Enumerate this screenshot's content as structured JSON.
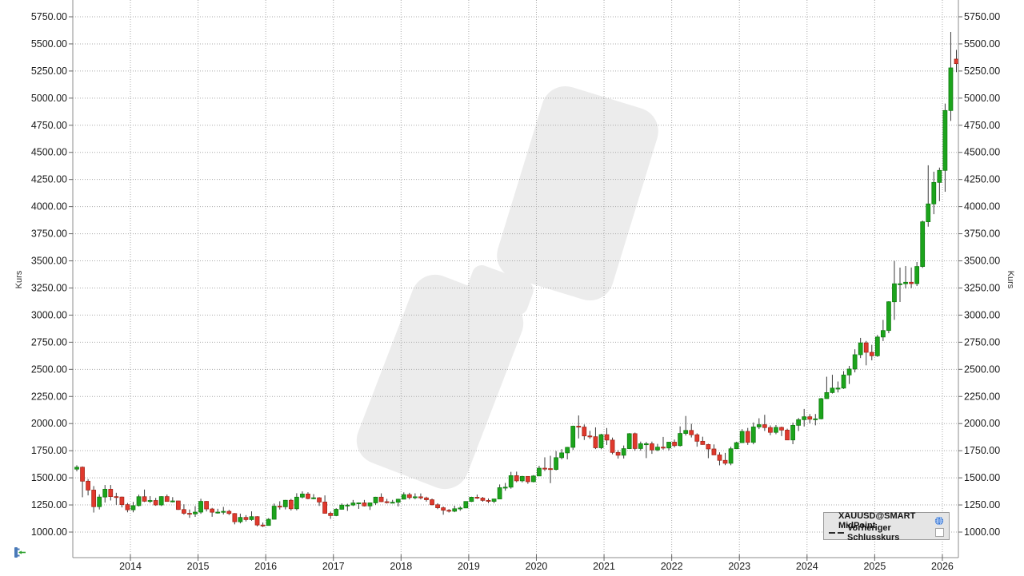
{
  "axes": {
    "left_title": "Kurs",
    "right_title": "Kurs",
    "y_tick_labels": [
      "5750.00",
      "5500.00",
      "5250.00",
      "5000.00",
      "4750.00",
      "4500.00",
      "4250.00",
      "4000.00",
      "3750.00",
      "3500.00",
      "3250.00",
      "3000.00",
      "2750.00",
      "2500.00",
      "2250.00",
      "2000.00",
      "1750.00",
      "1500.00",
      "1250.00",
      "1000.00"
    ],
    "x_tick_labels": [
      "2014",
      "2015",
      "2016",
      "2017",
      "2018",
      "2019",
      "2020",
      "2021",
      "2022",
      "2023",
      "2024",
      "2025",
      "2026"
    ]
  },
  "legend": {
    "series1": "XAUUSD@SMART MidPoint",
    "series2": "Vorheriger Schlusskurs",
    "checkbox_state": "unchecked"
  },
  "colors": {
    "up": "#1ca41c",
    "up_border": "#0e7a0e",
    "down": "#e0392d",
    "down_border": "#a32519",
    "wick": "#3a3a3a",
    "grid": "#a9a9a9",
    "border": "#8c8c8c",
    "tick": "#666666",
    "text": "#1a1a1a",
    "watermark": "#ececec",
    "legend_bg": "#e5e5e5"
  },
  "chart_data": {
    "type": "candlestick",
    "symbol": "XAUUSD@SMART MidPoint",
    "candle_interval": "monthly",
    "ylabel": "Kurs",
    "ylim": [
      875,
      5905
    ],
    "y_tick_values": [
      1000,
      1250,
      1500,
      1750,
      2000,
      2250,
      2500,
      2750,
      3000,
      3250,
      3500,
      3750,
      4000,
      4250,
      4500,
      4750,
      5000,
      5250,
      5500,
      5750
    ],
    "x_tick_years": [
      2014,
      2015,
      2016,
      2017,
      2018,
      2019,
      2020,
      2021,
      2022,
      2023,
      2024,
      2025,
      2026
    ],
    "grid": "dotted",
    "legend_position": "bottom-right",
    "last_price_marker": {
      "value": 5318,
      "color": "#e0392d"
    },
    "candles": [
      [
        "2013-03",
        1580,
        1616,
        1560,
        1598
      ],
      [
        "2013-04",
        1598,
        1605,
        1321,
        1469
      ],
      [
        "2013-05",
        1469,
        1488,
        1338,
        1387
      ],
      [
        "2013-06",
        1387,
        1424,
        1180,
        1234
      ],
      [
        "2013-07",
        1234,
        1348,
        1208,
        1323
      ],
      [
        "2013-08",
        1323,
        1434,
        1272,
        1395
      ],
      [
        "2013-09",
        1395,
        1434,
        1291,
        1327
      ],
      [
        "2013-10",
        1327,
        1362,
        1251,
        1323
      ],
      [
        "2013-11",
        1323,
        1327,
        1227,
        1253
      ],
      [
        "2013-12",
        1253,
        1268,
        1182,
        1205
      ],
      [
        "2014-01",
        1205,
        1278,
        1182,
        1244
      ],
      [
        "2014-02",
        1244,
        1345,
        1236,
        1326
      ],
      [
        "2014-03",
        1326,
        1392,
        1277,
        1284
      ],
      [
        "2014-04",
        1284,
        1331,
        1268,
        1291
      ],
      [
        "2014-05",
        1291,
        1315,
        1242,
        1250
      ],
      [
        "2014-06",
        1250,
        1330,
        1240,
        1327
      ],
      [
        "2014-07",
        1327,
        1346,
        1281,
        1282
      ],
      [
        "2014-08",
        1282,
        1322,
        1273,
        1287
      ],
      [
        "2014-09",
        1287,
        1290,
        1204,
        1208
      ],
      [
        "2014-10",
        1208,
        1256,
        1160,
        1173
      ],
      [
        "2014-11",
        1173,
        1208,
        1131,
        1167
      ],
      [
        "2014-12",
        1167,
        1239,
        1140,
        1184
      ],
      [
        "2015-01",
        1184,
        1307,
        1168,
        1283
      ],
      [
        "2015-02",
        1283,
        1286,
        1190,
        1213
      ],
      [
        "2015-03",
        1213,
        1223,
        1141,
        1183
      ],
      [
        "2015-04",
        1183,
        1215,
        1170,
        1184
      ],
      [
        "2015-05",
        1184,
        1232,
        1162,
        1191
      ],
      [
        "2015-06",
        1191,
        1205,
        1157,
        1171
      ],
      [
        "2015-07",
        1171,
        1175,
        1071,
        1095
      ],
      [
        "2015-08",
        1095,
        1170,
        1080,
        1135
      ],
      [
        "2015-09",
        1135,
        1156,
        1098,
        1115
      ],
      [
        "2015-10",
        1115,
        1191,
        1104,
        1142
      ],
      [
        "2015-11",
        1142,
        1146,
        1052,
        1065
      ],
      [
        "2015-12",
        1065,
        1088,
        1046,
        1061
      ],
      [
        "2016-01",
        1061,
        1128,
        1061,
        1118
      ],
      [
        "2016-02",
        1118,
        1263,
        1117,
        1239
      ],
      [
        "2016-03",
        1239,
        1284,
        1208,
        1233
      ],
      [
        "2016-04",
        1233,
        1296,
        1209,
        1293
      ],
      [
        "2016-05",
        1293,
        1306,
        1199,
        1215
      ],
      [
        "2016-06",
        1215,
        1358,
        1200,
        1322
      ],
      [
        "2016-07",
        1322,
        1375,
        1310,
        1351
      ],
      [
        "2016-08",
        1351,
        1367,
        1302,
        1309
      ],
      [
        "2016-09",
        1309,
        1350,
        1302,
        1316
      ],
      [
        "2016-10",
        1316,
        1322,
        1241,
        1277
      ],
      [
        "2016-11",
        1277,
        1338,
        1170,
        1173
      ],
      [
        "2016-12",
        1173,
        1188,
        1122,
        1152
      ],
      [
        "2017-01",
        1152,
        1220,
        1146,
        1210
      ],
      [
        "2017-02",
        1210,
        1264,
        1208,
        1249
      ],
      [
        "2017-03",
        1249,
        1261,
        1195,
        1249
      ],
      [
        "2017-04",
        1249,
        1296,
        1240,
        1268
      ],
      [
        "2017-05",
        1268,
        1273,
        1214,
        1269
      ],
      [
        "2017-06",
        1269,
        1296,
        1236,
        1241
      ],
      [
        "2017-07",
        1241,
        1270,
        1204,
        1269
      ],
      [
        "2017-08",
        1269,
        1325,
        1251,
        1322
      ],
      [
        "2017-09",
        1322,
        1357,
        1277,
        1280
      ],
      [
        "2017-10",
        1280,
        1306,
        1263,
        1271
      ],
      [
        "2017-11",
        1271,
        1297,
        1265,
        1275
      ],
      [
        "2017-12",
        1275,
        1307,
        1236,
        1303
      ],
      [
        "2018-01",
        1303,
        1366,
        1302,
        1345
      ],
      [
        "2018-02",
        1345,
        1362,
        1301,
        1318
      ],
      [
        "2018-03",
        1318,
        1357,
        1302,
        1325
      ],
      [
        "2018-04",
        1325,
        1356,
        1301,
        1315
      ],
      [
        "2018-05",
        1315,
        1326,
        1281,
        1298
      ],
      [
        "2018-06",
        1298,
        1309,
        1246,
        1252
      ],
      [
        "2018-07",
        1252,
        1266,
        1211,
        1224
      ],
      [
        "2018-08",
        1224,
        1235,
        1160,
        1201
      ],
      [
        "2018-09",
        1201,
        1212,
        1180,
        1192
      ],
      [
        "2018-10",
        1192,
        1243,
        1183,
        1215
      ],
      [
        "2018-11",
        1215,
        1237,
        1196,
        1222
      ],
      [
        "2018-12",
        1222,
        1284,
        1221,
        1282
      ],
      [
        "2019-01",
        1282,
        1326,
        1277,
        1321
      ],
      [
        "2019-02",
        1321,
        1346,
        1305,
        1313
      ],
      [
        "2019-03",
        1313,
        1324,
        1280,
        1292
      ],
      [
        "2019-04",
        1292,
        1310,
        1266,
        1283
      ],
      [
        "2019-05",
        1283,
        1307,
        1266,
        1305
      ],
      [
        "2019-06",
        1305,
        1439,
        1305,
        1409
      ],
      [
        "2019-07",
        1409,
        1453,
        1381,
        1414
      ],
      [
        "2019-08",
        1414,
        1555,
        1400,
        1520
      ],
      [
        "2019-09",
        1520,
        1557,
        1459,
        1472
      ],
      [
        "2019-10",
        1472,
        1518,
        1458,
        1513
      ],
      [
        "2019-11",
        1513,
        1515,
        1445,
        1464
      ],
      [
        "2019-12",
        1464,
        1525,
        1458,
        1517
      ],
      [
        "2020-01",
        1517,
        1611,
        1517,
        1589
      ],
      [
        "2020-02",
        1589,
        1689,
        1563,
        1585
      ],
      [
        "2020-03",
        1585,
        1703,
        1451,
        1577
      ],
      [
        "2020-04",
        1577,
        1747,
        1568,
        1686
      ],
      [
        "2020-05",
        1686,
        1765,
        1670,
        1730
      ],
      [
        "2020-06",
        1730,
        1785,
        1670,
        1781
      ],
      [
        "2020-07",
        1781,
        1981,
        1757,
        1976
      ],
      [
        "2020-08",
        1976,
        2075,
        1863,
        1968
      ],
      [
        "2020-09",
        1968,
        1992,
        1849,
        1886
      ],
      [
        "2020-10",
        1886,
        1933,
        1860,
        1879
      ],
      [
        "2020-11",
        1879,
        1965,
        1765,
        1777
      ],
      [
        "2020-12",
        1777,
        1906,
        1764,
        1898
      ],
      [
        "2021-01",
        1898,
        1959,
        1803,
        1848
      ],
      [
        "2021-02",
        1848,
        1871,
        1717,
        1734
      ],
      [
        "2021-03",
        1734,
        1755,
        1677,
        1708
      ],
      [
        "2021-04",
        1708,
        1798,
        1678,
        1769
      ],
      [
        "2021-05",
        1769,
        1912,
        1765,
        1907
      ],
      [
        "2021-06",
        1907,
        1917,
        1750,
        1770
      ],
      [
        "2021-07",
        1770,
        1834,
        1750,
        1814
      ],
      [
        "2021-08",
        1814,
        1831,
        1682,
        1814
      ],
      [
        "2021-09",
        1814,
        1834,
        1721,
        1757
      ],
      [
        "2021-10",
        1757,
        1813,
        1746,
        1783
      ],
      [
        "2021-11",
        1783,
        1877,
        1759,
        1775
      ],
      [
        "2021-12",
        1775,
        1830,
        1753,
        1829
      ],
      [
        "2022-01",
        1829,
        1853,
        1780,
        1797
      ],
      [
        "2022-02",
        1797,
        1974,
        1788,
        1909
      ],
      [
        "2022-03",
        1909,
        2070,
        1890,
        1937
      ],
      [
        "2022-04",
        1937,
        1998,
        1872,
        1897
      ],
      [
        "2022-05",
        1897,
        1910,
        1787,
        1837
      ],
      [
        "2022-06",
        1837,
        1879,
        1805,
        1807
      ],
      [
        "2022-07",
        1807,
        1814,
        1681,
        1766
      ],
      [
        "2022-08",
        1766,
        1808,
        1711,
        1711
      ],
      [
        "2022-09",
        1711,
        1735,
        1615,
        1661
      ],
      [
        "2022-10",
        1661,
        1730,
        1617,
        1634
      ],
      [
        "2022-11",
        1634,
        1787,
        1616,
        1768
      ],
      [
        "2022-12",
        1768,
        1833,
        1765,
        1824
      ],
      [
        "2023-01",
        1824,
        1949,
        1823,
        1928
      ],
      [
        "2023-02",
        1928,
        1960,
        1804,
        1827
      ],
      [
        "2023-03",
        1827,
        2010,
        1809,
        1969
      ],
      [
        "2023-04",
        1969,
        2049,
        1949,
        1990
      ],
      [
        "2023-05",
        1990,
        2081,
        1932,
        1963
      ],
      [
        "2023-06",
        1963,
        1983,
        1893,
        1919
      ],
      [
        "2023-07",
        1919,
        1987,
        1902,
        1965
      ],
      [
        "2023-08",
        1965,
        1972,
        1885,
        1940
      ],
      [
        "2023-09",
        1940,
        1953,
        1848,
        1849
      ],
      [
        "2023-10",
        1849,
        2009,
        1810,
        1984
      ],
      [
        "2023-11",
        1984,
        2052,
        1931,
        2036
      ],
      [
        "2023-12",
        2036,
        2135,
        1973,
        2063
      ],
      [
        "2024-01",
        2063,
        2088,
        2001,
        2040
      ],
      [
        "2024-02",
        2040,
        2088,
        1984,
        2044
      ],
      [
        "2024-03",
        2044,
        2236,
        2039,
        2230
      ],
      [
        "2024-04",
        2230,
        2432,
        2228,
        2286
      ],
      [
        "2024-05",
        2286,
        2450,
        2277,
        2327
      ],
      [
        "2024-06",
        2327,
        2388,
        2287,
        2327
      ],
      [
        "2024-07",
        2327,
        2484,
        2319,
        2448
      ],
      [
        "2024-08",
        2448,
        2532,
        2365,
        2503
      ],
      [
        "2024-09",
        2503,
        2685,
        2472,
        2635
      ],
      [
        "2024-10",
        2635,
        2790,
        2604,
        2744
      ],
      [
        "2024-11",
        2744,
        2762,
        2537,
        2657
      ],
      [
        "2024-12",
        2657,
        2726,
        2583,
        2625
      ],
      [
        "2025-01",
        2625,
        2817,
        2615,
        2798
      ],
      [
        "2025-02",
        2798,
        2956,
        2760,
        2858
      ],
      [
        "2025-03",
        2858,
        3128,
        2833,
        3123
      ],
      [
        "2025-04",
        3123,
        3500,
        2956,
        3289
      ],
      [
        "2025-05",
        3289,
        3438,
        3121,
        3289
      ],
      [
        "2025-06",
        3289,
        3452,
        3245,
        3303
      ],
      [
        "2025-07",
        3303,
        3439,
        3248,
        3290
      ],
      [
        "2025-08",
        3290,
        3489,
        3268,
        3448
      ],
      [
        "2025-09",
        3448,
        3871,
        3435,
        3860
      ],
      [
        "2025-10",
        3860,
        4381,
        3815,
        4025
      ],
      [
        "2025-11",
        4025,
        4322,
        3930,
        4223
      ],
      [
        "2025-12",
        4223,
        4360,
        4050,
        4334
      ],
      [
        "2026-01",
        4334,
        4950,
        4137,
        4886
      ],
      [
        "2026-02",
        4886,
        5610,
        4790,
        5279
      ],
      [
        "2026-03",
        5360,
        5445,
        5240,
        5318
      ]
    ]
  }
}
